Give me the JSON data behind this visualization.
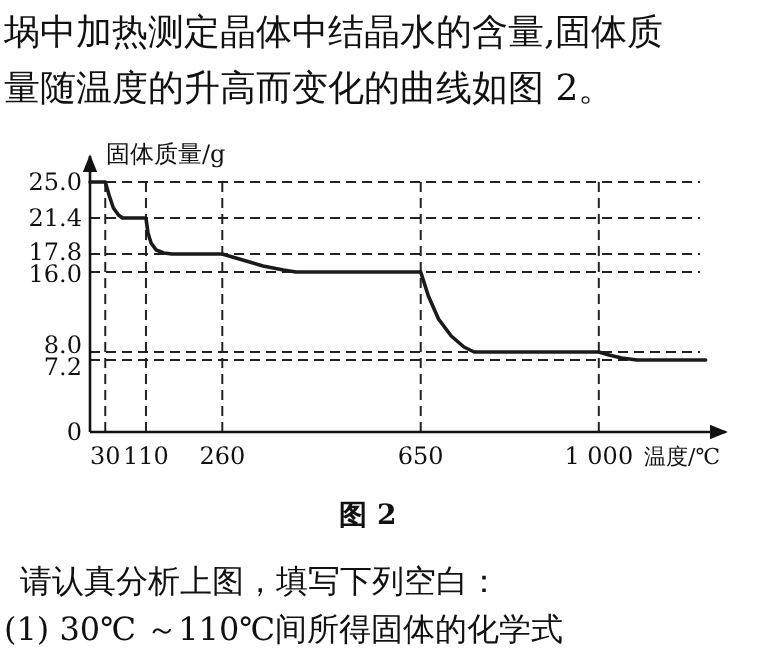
{
  "chart_data": {
    "type": "line",
    "title": "图 2",
    "xlabel": "温度/℃",
    "ylabel": "固体质量/g",
    "annotations": [
      "埚中加热测定晶体中结晶水的含量,固体质",
      "量随温度的升高而变化的曲线如图 2。",
      "请认真分析上图，填写下列空白：",
      "(1) 30℃ ～110℃间所得固体的化学式"
    ],
    "series": [
      {
        "color": "#1a1a1a",
        "x": [
          0,
          30,
          38,
          46,
          56,
          64,
          110,
          114,
          120,
          130,
          145,
          161,
          260,
          300,
          340,
          380,
          405,
          650,
          665,
          685,
          710,
          735,
          755,
          1000,
          1020,
          1045,
          1075,
          1210
        ],
        "values": [
          25.0,
          25.0,
          23.6,
          22.4,
          21.7,
          21.4,
          21.4,
          19.9,
          18.9,
          18.2,
          17.9,
          17.8,
          17.8,
          17.2,
          16.6,
          16.2,
          16.0,
          16.0,
          13.6,
          11.3,
          9.6,
          8.5,
          8.0,
          8.0,
          7.7,
          7.4,
          7.2,
          7.2
        ]
      }
    ],
    "xlim": [
      0,
      1250
    ],
    "ylim": [
      0,
      27.6
    ],
    "xticks": [
      30,
      110,
      260,
      650,
      {
        "value": 1000,
        "label": "1 000"
      }
    ],
    "yticks": [
      0,
      {
        "value": 7.2,
        "label": "7.2"
      },
      {
        "value": 8.0,
        "label": "8.0"
      },
      {
        "value": 16.0,
        "label": "16.0"
      },
      {
        "value": 17.8,
        "label": "17.8"
      },
      {
        "value": 21.4,
        "label": "21.4"
      },
      {
        "value": 25.0,
        "label": "25.0"
      }
    ],
    "grid": true,
    "line_style": "solid",
    "marker": "none"
  }
}
